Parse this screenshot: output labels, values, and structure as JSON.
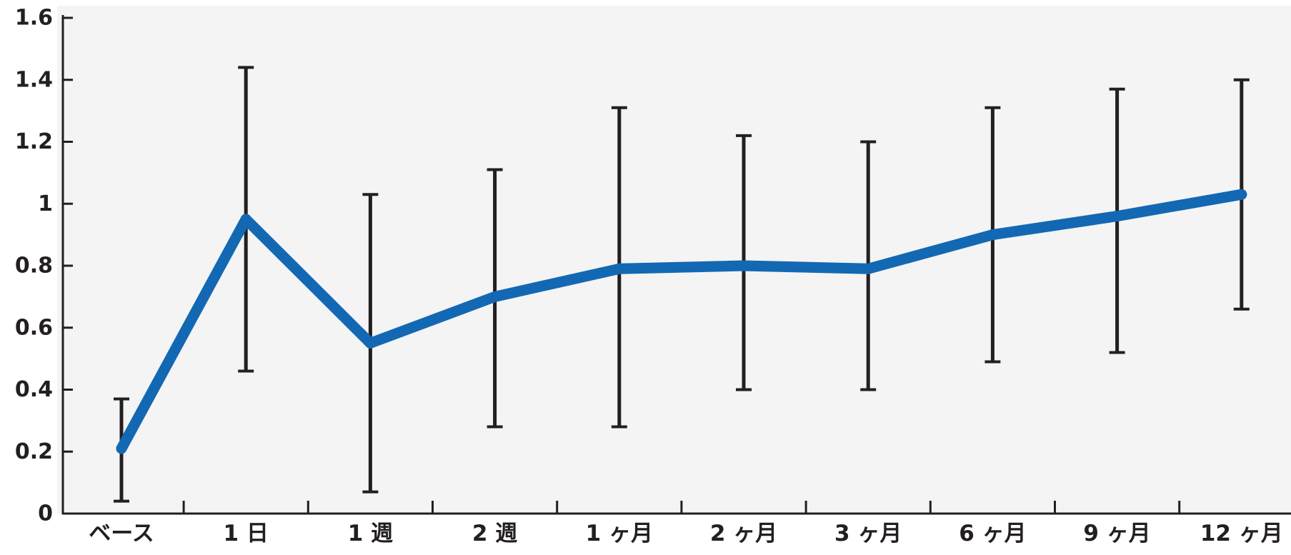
{
  "chart_data": {
    "type": "line",
    "title": "",
    "xlabel": "",
    "ylabel": "",
    "categories": [
      "ベース",
      "1日",
      "1週",
      "2週",
      "1ヶ月",
      "2ヶ月",
      "3ヶ月",
      "6ヶ月",
      "9ヶ月",
      "12ヶ月"
    ],
    "category_labels": [
      "ベース",
      "1 日",
      "1 週",
      "2 週",
      "1 ヶ月",
      "2 ヶ月",
      "3 ヶ月",
      "6 ヶ月",
      "9 ヶ月",
      "12 ヶ月"
    ],
    "series": [
      {
        "values": [
          0.21,
          0.95,
          0.55,
          0.7,
          0.79,
          0.8,
          0.79,
          0.9,
          0.96,
          1.03
        ],
        "error_low": [
          0.04,
          0.46,
          0.07,
          0.28,
          0.28,
          0.4,
          0.4,
          0.49,
          0.52,
          0.66
        ],
        "error_high": [
          0.37,
          1.44,
          1.03,
          1.11,
          1.31,
          1.22,
          1.2,
          1.31,
          1.37,
          1.4
        ]
      }
    ],
    "ylim": [
      0,
      1.6
    ],
    "y_ticks": [
      0,
      0.2,
      0.4,
      0.6,
      0.8,
      1,
      1.2,
      1.4,
      1.6
    ],
    "y_tick_labels": [
      "0",
      "0.2",
      "0.4",
      "0.6",
      "0.8",
      "1",
      "1.2",
      "1.4",
      "1.6"
    ],
    "grid": false,
    "legend": "none",
    "colors": {
      "line": "#1368b3",
      "error_bar": "#231f20",
      "axis": "#231f20",
      "text": "#231f20",
      "plot_background": "#f4f4f4"
    }
  }
}
